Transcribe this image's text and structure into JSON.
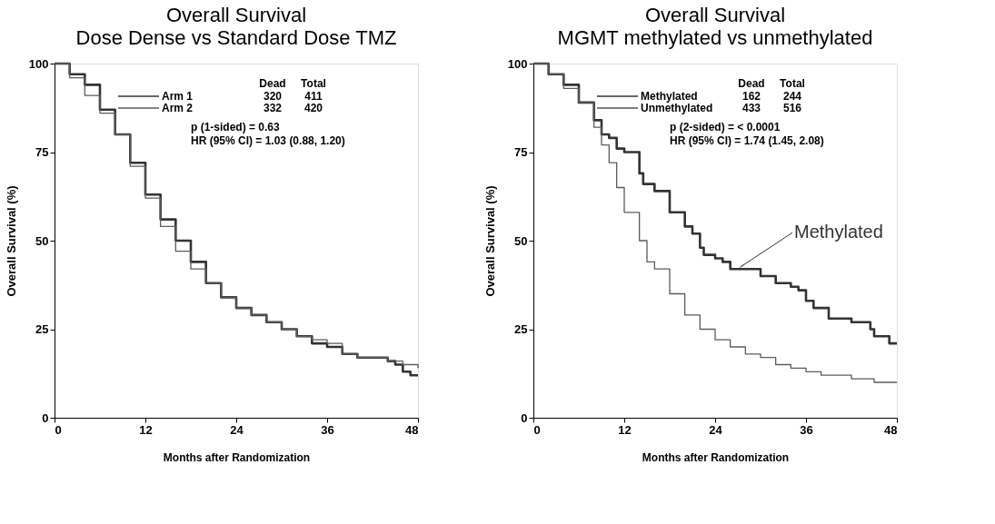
{
  "chart_data": [
    {
      "type": "step",
      "title": "Overall Survival",
      "subtitle": "Dose Dense vs Standard Dose TMZ",
      "xlabel": "Months after Randomization",
      "ylabel": "Overall Survival (%)",
      "xlim": [
        0,
        48
      ],
      "ylim": [
        0,
        100
      ],
      "xticks": [
        0,
        12,
        24,
        36,
        48
      ],
      "yticks": [
        0,
        25,
        50,
        75,
        100
      ],
      "grid": false,
      "legend": "top",
      "line_style": "solid",
      "marker": "none",
      "x": [
        0,
        2,
        4,
        6,
        8,
        10,
        12,
        14,
        16,
        18,
        20,
        22,
        24,
        26,
        28,
        30,
        32,
        34,
        36,
        38,
        40,
        42,
        44,
        45,
        46,
        47,
        48
      ],
      "series": [
        {
          "name": "Arm 1",
          "color": "#333333",
          "values": [
            100,
            97,
            94,
            87,
            80,
            72,
            63,
            56,
            50,
            44,
            38,
            34,
            31,
            29,
            27,
            25,
            23,
            21,
            20,
            18,
            17,
            17,
            16,
            15,
            13,
            12,
            12
          ]
        },
        {
          "name": "Arm 2",
          "color": "#5c5c5c",
          "values": [
            100,
            96,
            91,
            86,
            80,
            71,
            62,
            54,
            47,
            42,
            38,
            34,
            31,
            29,
            27,
            25,
            23,
            22,
            21,
            18,
            17,
            17,
            16,
            16,
            15,
            15,
            14
          ]
        }
      ],
      "annotations": [
        "Dead",
        "Total",
        "320",
        "411",
        "332",
        "420",
        "p (1-sided) =  0.63",
        "HR (95% CI) = 1.03 (0.88, 1.20)"
      ]
    },
    {
      "type": "step",
      "title": "Overall Survival",
      "subtitle": "MGMT methylated vs unmethylated",
      "xlabel": "Months after Randomization",
      "ylabel": "Overall Survival (%)",
      "xlim": [
        0,
        48
      ],
      "ylim": [
        0,
        100
      ],
      "xticks": [
        0,
        12,
        24,
        36,
        48
      ],
      "yticks": [
        0,
        25,
        50,
        75,
        100
      ],
      "grid": false,
      "legend": "top",
      "line_style": "solid",
      "marker": "none",
      "series": [
        {
          "name": "Methylated",
          "color": "#333333",
          "x": [
            0,
            2,
            4,
            6,
            8,
            9,
            10,
            11,
            12,
            14,
            14.5,
            16,
            18,
            20,
            21,
            22,
            22.5,
            24,
            25,
            26,
            28,
            30,
            32,
            34,
            35,
            36,
            37,
            38,
            39,
            41,
            42,
            44,
            44.5,
            45,
            47,
            48
          ],
          "values": [
            100,
            97,
            94,
            89,
            84,
            80,
            79,
            76,
            75,
            69,
            66,
            64,
            58,
            54,
            52,
            48,
            46,
            45,
            44,
            42,
            42,
            40,
            38,
            37,
            36,
            33,
            31,
            31,
            28,
            28,
            27,
            27,
            25,
            23,
            21,
            21
          ]
        },
        {
          "name": "Unmethylated",
          "color": "#555555",
          "x": [
            0,
            2,
            4,
            6,
            8,
            9,
            10,
            11,
            12,
            14,
            15,
            16,
            18,
            20,
            22,
            24,
            26,
            28,
            30,
            32,
            34,
            36,
            38,
            40,
            42,
            44,
            45,
            48
          ],
          "values": [
            100,
            97,
            93,
            89,
            82,
            77,
            72,
            65,
            58,
            50,
            44,
            42,
            35,
            29,
            25,
            22,
            20,
            18,
            17,
            15,
            14,
            13,
            12,
            12,
            11,
            11,
            10,
            10
          ]
        }
      ],
      "annotations": [
        "Dead",
        "Total",
        "162",
        "244",
        "433",
        "516",
        "p (2-sided) = < 0.0001",
        "HR (95% CI) = 1.74 (1.45, 2.08)",
        {
          "text": "Methylated",
          "x": 27,
          "y": 42
        }
      ]
    }
  ]
}
